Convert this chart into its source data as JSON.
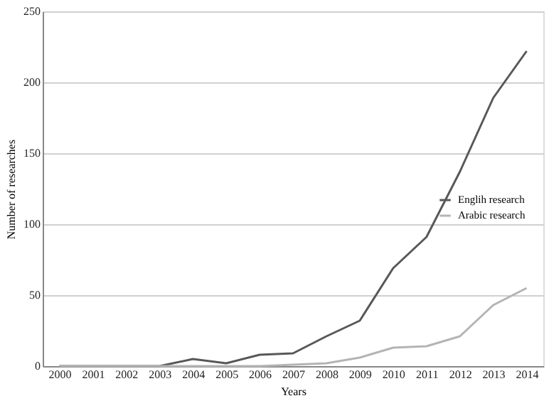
{
  "chart_data": {
    "type": "line",
    "xlabel": "Years",
    "ylabel": "Number of researches",
    "categories": [
      "2000",
      "2001",
      "2002",
      "2003",
      "2004",
      "2005",
      "2006",
      "2007",
      "2008",
      "2009",
      "2010",
      "2011",
      "2012",
      "2013",
      "2014"
    ],
    "series": [
      {
        "name": "Englih research",
        "color": "#585858",
        "values": [
          0,
          0,
          0,
          0,
          5,
          2,
          8,
          9,
          21,
          32,
          69,
          91,
          137,
          189,
          222
        ]
      },
      {
        "name": "Arabic research",
        "color": "#b4b4b4",
        "values": [
          0,
          0,
          0,
          0,
          0,
          0,
          0,
          1,
          2,
          6,
          13,
          14,
          21,
          43,
          55
        ]
      }
    ],
    "ylim": [
      0,
      250
    ],
    "yticks": [
      0,
      50,
      100,
      150,
      200,
      250
    ],
    "grid": "y",
    "legend": "right",
    "marker": "none",
    "line_style": "solid"
  }
}
